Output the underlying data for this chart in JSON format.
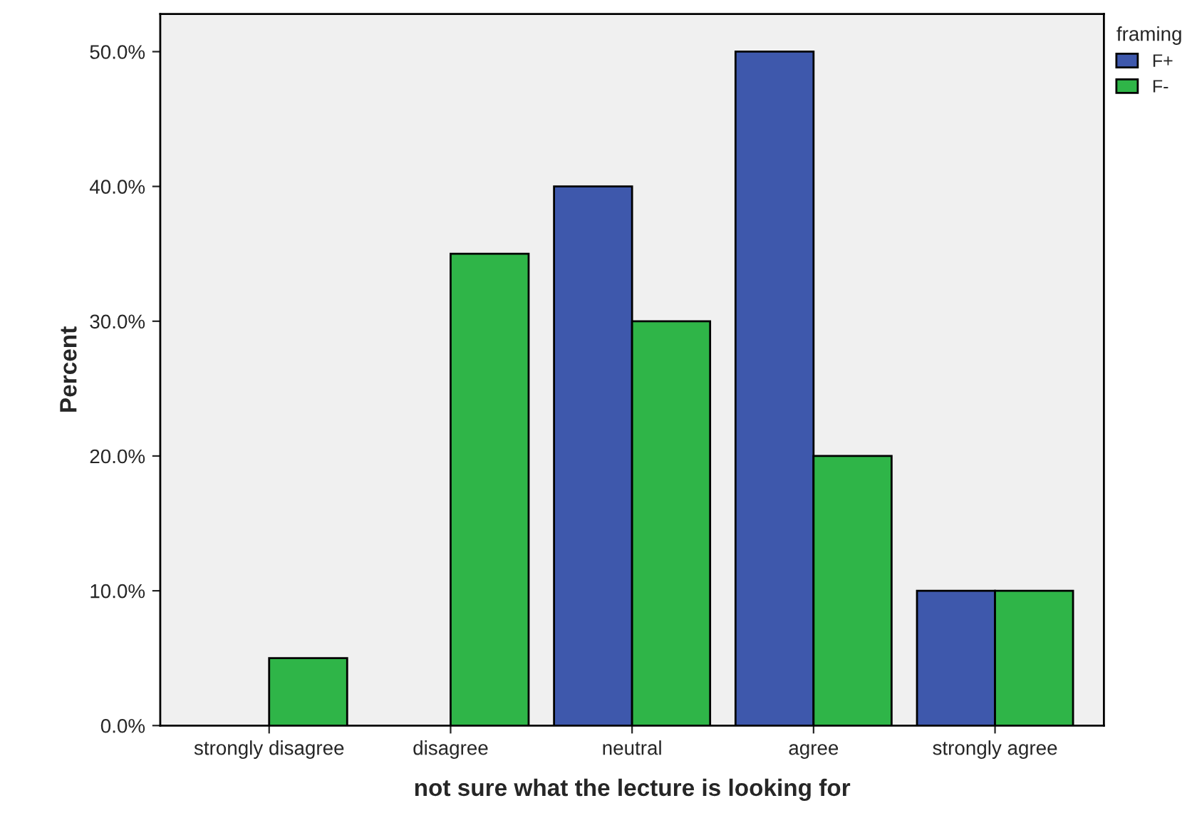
{
  "chart_data": {
    "type": "bar",
    "xlabel": "not sure what the lecture is looking for",
    "ylabel": "Percent",
    "legend_title": "framing",
    "categories": [
      "strongly disagree",
      "disagree",
      "neutral",
      "agree",
      "strongly agree"
    ],
    "series": [
      {
        "name": "F+",
        "color": "#3e58ac",
        "values": [
          0,
          0,
          40,
          50,
          10
        ]
      },
      {
        "name": "F-",
        "color": "#2fb548",
        "values": [
          5,
          35,
          30,
          20,
          10
        ]
      }
    ],
    "ylim": [
      0,
      52.8
    ],
    "yticks": [
      {
        "value": 0,
        "label": "0.0%"
      },
      {
        "value": 10,
        "label": "10.0%"
      },
      {
        "value": 20,
        "label": "20.0%"
      },
      {
        "value": 30,
        "label": "30.0%"
      },
      {
        "value": 40,
        "label": "40.0%"
      },
      {
        "value": 50,
        "label": "50.0%"
      }
    ],
    "grid": false,
    "legend": "top right"
  }
}
